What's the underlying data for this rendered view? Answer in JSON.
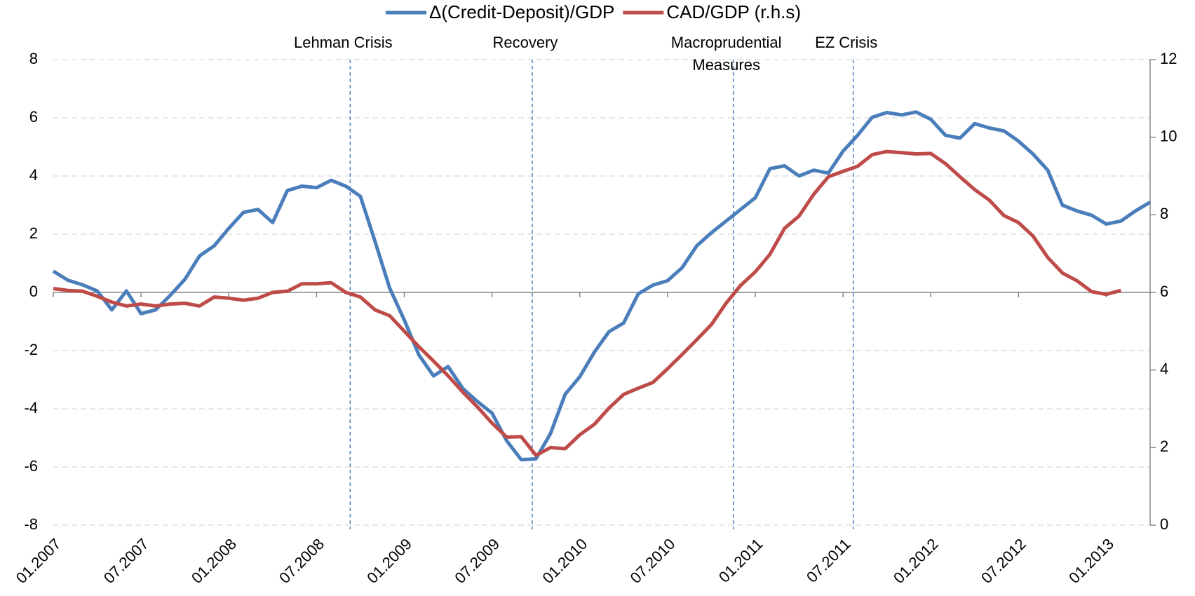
{
  "chart_data": {
    "type": "line",
    "categories": [
      "01.2007",
      null,
      null,
      null,
      null,
      null,
      "07.2007",
      null,
      null,
      null,
      null,
      null,
      "01.2008",
      null,
      null,
      null,
      null,
      null,
      "07.2008",
      null,
      null,
      null,
      null,
      null,
      "01.2009",
      null,
      null,
      null,
      null,
      null,
      "07.2009",
      null,
      null,
      null,
      null,
      null,
      "01.2010",
      null,
      null,
      null,
      null,
      null,
      "07.2010",
      null,
      null,
      null,
      null,
      null,
      "01.2011",
      null,
      null,
      null,
      null,
      null,
      "07.2011",
      null,
      null,
      null,
      null,
      null,
      "01.2012",
      null,
      null,
      null,
      null,
      null,
      "07.2012",
      null,
      null,
      null,
      null,
      null,
      "01.2013",
      null,
      null,
      null
    ],
    "series": [
      {
        "name": "Δ(Credit-Deposit)/GDP",
        "color": "#4a7ebb",
        "values": [
          0.73,
          0.42,
          0.26,
          0.05,
          -0.6,
          0.05,
          -0.73,
          -0.6,
          -0.1,
          0.45,
          1.25,
          1.6,
          2.2,
          2.75,
          2.85,
          2.4,
          3.5,
          3.65,
          3.6,
          3.85,
          3.65,
          3.3,
          1.75,
          0.15,
          -0.95,
          -2.15,
          -2.87,
          -2.55,
          -3.3,
          -3.75,
          -4.15,
          -5.1,
          -5.75,
          -5.72,
          -4.85,
          -3.5,
          -2.9,
          -2.05,
          -1.35,
          -1.05,
          -0.05,
          0.25,
          0.4,
          0.85,
          1.6,
          2.05,
          2.45,
          2.85,
          3.25,
          4.25,
          4.35,
          4.0,
          4.2,
          4.1,
          4.85,
          5.4,
          6.02,
          6.18,
          6.1,
          6.2,
          5.95,
          5.4,
          5.3,
          5.8,
          5.65,
          5.55,
          5.2,
          4.75,
          4.2,
          3.0,
          2.8,
          2.65,
          2.35,
          2.45,
          2.8,
          3.1
        ]
      },
      {
        "name": "CAD/GDP (r.h.s)",
        "color": "#be4b48",
        "axis": "y2",
        "values": [
          6.1,
          6.05,
          6.03,
          5.9,
          5.75,
          5.65,
          5.7,
          5.65,
          5.7,
          5.72,
          5.65,
          5.88,
          5.85,
          5.8,
          5.85,
          6.0,
          6.03,
          6.22,
          6.22,
          6.25,
          6.0,
          5.88,
          5.55,
          5.4,
          5.0,
          4.6,
          4.23,
          3.85,
          3.43,
          3.05,
          2.63,
          2.27,
          2.28,
          1.8,
          2.0,
          1.97,
          2.33,
          2.6,
          3.02,
          3.37,
          3.53,
          3.68,
          4.03,
          4.4,
          4.78,
          5.17,
          5.72,
          6.18,
          6.53,
          6.98,
          7.65,
          7.97,
          8.53,
          8.98,
          9.12,
          9.25,
          9.55,
          9.63,
          9.6,
          9.57,
          9.58,
          9.32,
          8.98,
          8.65,
          8.38,
          7.98,
          7.8,
          7.45,
          6.9,
          6.5,
          6.3,
          6.02,
          5.95,
          6.05,
          null,
          null
        ]
      }
    ],
    "ylim": [
      -8,
      8
    ],
    "yticks": [
      -8,
      -6,
      -4,
      -2,
      0,
      2,
      4,
      6,
      8
    ],
    "y2lim": [
      0,
      12
    ],
    "y2ticks": [
      0,
      2,
      4,
      6,
      8,
      10,
      12
    ],
    "grid": true,
    "legend": "top",
    "annotations": [
      {
        "lines": [
          "Lehman Crisis"
        ],
        "x": 20.3
      },
      {
        "lines": [
          "Recovery"
        ],
        "x": 32.75
      },
      {
        "lines": [
          "Macroprudential",
          "Measures"
        ],
        "x": 46.5
      },
      {
        "lines": [
          "EZ Crisis"
        ],
        "x": 54.7
      }
    ]
  }
}
